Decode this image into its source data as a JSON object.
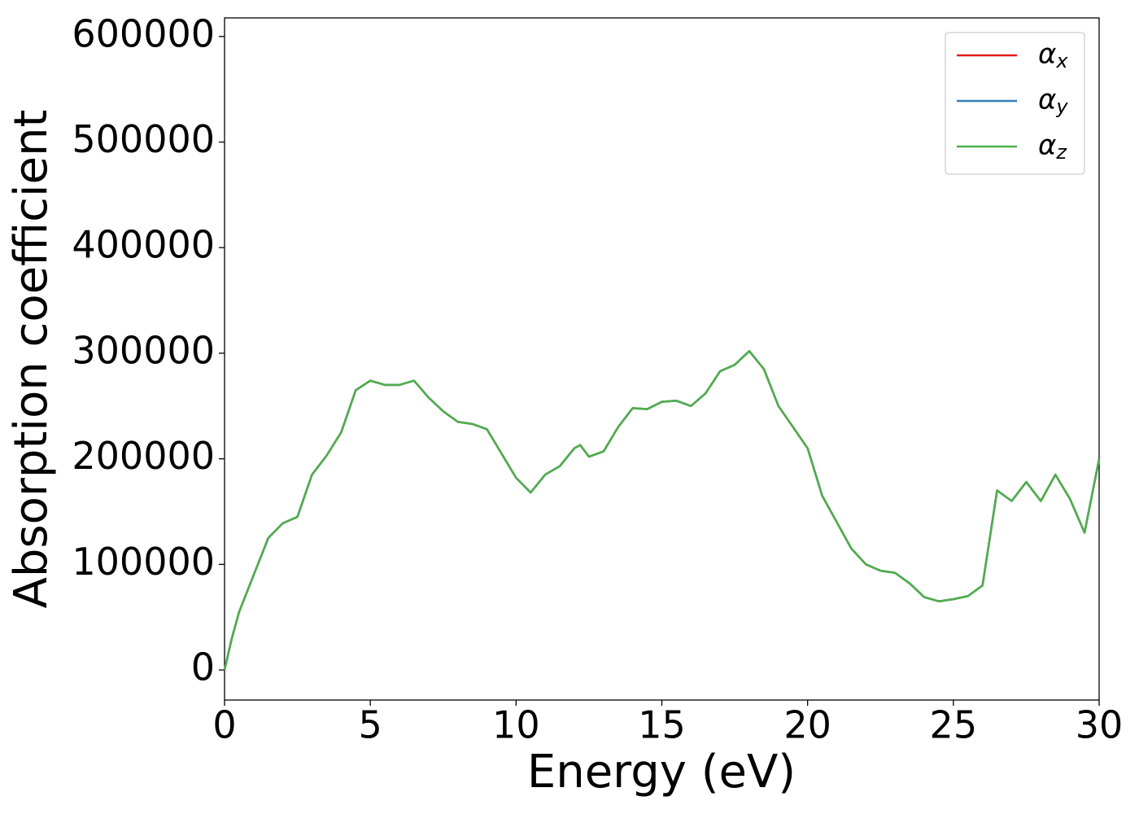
{
  "chart_data": {
    "type": "line",
    "xlabel": "Energy (eV)",
    "ylabel": "Absorption coefficient",
    "x": [
      0,
      0.25,
      0.5,
      1.0,
      1.5,
      2.0,
      2.5,
      3.0,
      3.5,
      4.0,
      4.5,
      5.0,
      5.5,
      6.0,
      6.5,
      7.0,
      7.5,
      8.0,
      8.5,
      9.0,
      9.5,
      10.0,
      10.5,
      11.0,
      11.5,
      12.0,
      12.2,
      12.5,
      13.0,
      13.5,
      14.0,
      14.5,
      15.0,
      15.5,
      16.0,
      16.5,
      17.0,
      17.5,
      18.0,
      18.5,
      19.0,
      19.5,
      20.0,
      20.5,
      21.0,
      21.5,
      22.0,
      22.5,
      23.0,
      23.5,
      24.0,
      24.5,
      25.0,
      25.5,
      26.0,
      26.5,
      27.0,
      27.5,
      28.0,
      28.5,
      29.0,
      29.5,
      30.0
    ],
    "series": [
      {
        "name": "αx",
        "color": "#e41a1c",
        "values": [
          0,
          30000,
          55000,
          90000,
          125000,
          139000,
          145000,
          185000,
          203000,
          225000,
          265000,
          274000,
          270000,
          270000,
          274000,
          258000,
          245000,
          235000,
          233000,
          228000,
          205000,
          182000,
          168000,
          185000,
          193000,
          210000,
          213000,
          202000,
          207000,
          230000,
          248000,
          247000,
          254000,
          255000,
          250000,
          262000,
          283000,
          289000,
          302000,
          285000,
          250000,
          230000,
          210000,
          165000,
          140000,
          115000,
          100000,
          94000,
          92000,
          82000,
          69000,
          65000,
          67000,
          70000,
          80000,
          170000,
          160000,
          178000,
          160000,
          185000,
          162000,
          130000,
          200000
        ]
      },
      {
        "name": "αy",
        "color": "#377eb8",
        "values": [
          0,
          30000,
          55000,
          90000,
          125000,
          139000,
          145000,
          185000,
          203000,
          225000,
          265000,
          274000,
          270000,
          270000,
          274000,
          258000,
          245000,
          235000,
          233000,
          228000,
          205000,
          182000,
          168000,
          185000,
          193000,
          210000,
          213000,
          202000,
          207000,
          230000,
          248000,
          247000,
          254000,
          255000,
          250000,
          262000,
          283000,
          289000,
          302000,
          285000,
          250000,
          230000,
          210000,
          165000,
          140000,
          115000,
          100000,
          94000,
          92000,
          82000,
          69000,
          65000,
          67000,
          70000,
          80000,
          170000,
          160000,
          178000,
          160000,
          185000,
          162000,
          130000,
          200000
        ]
      },
      {
        "name": "αz",
        "color": "#4daf4a",
        "values": [
          0,
          30000,
          55000,
          90000,
          125000,
          139000,
          145000,
          185000,
          203000,
          225000,
          265000,
          274000,
          270000,
          270000,
          274000,
          258000,
          245000,
          235000,
          233000,
          228000,
          205000,
          182000,
          168000,
          185000,
          193000,
          210000,
          213000,
          202000,
          207000,
          230000,
          248000,
          247000,
          254000,
          255000,
          250000,
          262000,
          283000,
          289000,
          302000,
          285000,
          250000,
          230000,
          210000,
          165000,
          140000,
          115000,
          100000,
          94000,
          92000,
          82000,
          69000,
          65000,
          67000,
          70000,
          80000,
          170000,
          160000,
          178000,
          160000,
          185000,
          162000,
          130000,
          200000
        ]
      }
    ],
    "xlim": [
      0,
      30
    ],
    "xticks": [
      0,
      5,
      10,
      15,
      20,
      25,
      30
    ],
    "ylim": [
      -28500,
      617600
    ],
    "yticks": [
      0,
      100000,
      200000,
      300000,
      400000,
      500000,
      600000
    ],
    "grid": false,
    "legend": "upper right"
  }
}
